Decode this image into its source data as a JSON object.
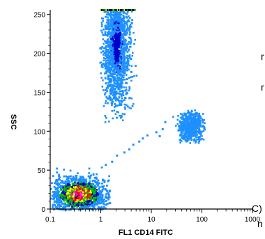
{
  "chart_data": {
    "type": "scatter",
    "title": "",
    "xlabel": "FL1 CD14 FITC",
    "ylabel": "SSC",
    "x_scale": "log",
    "xlim": [
      0.1,
      1000
    ],
    "ylim": [
      0,
      256
    ],
    "x_ticks": [
      "0.1",
      "1",
      "10",
      "100",
      "1000"
    ],
    "y_ticks": [
      "0",
      "50",
      "100",
      "150",
      "200",
      "250"
    ],
    "grid": false,
    "legend": "none",
    "density_colors": [
      "#1e90ff",
      "#0000cd",
      "#00c000",
      "#ffff00",
      "#ff0000",
      "#ff00ff",
      "#000000"
    ],
    "populations": [
      {
        "x_center": 2.0,
        "x_range": [
          0.9,
          5.0
        ],
        "y_center": 210,
        "y_range": [
          112,
          256
        ]
      },
      {
        "x_center": 60,
        "x_range": [
          20,
          110
        ],
        "y_center": 107,
        "y_range": [
          85,
          128
        ]
      },
      {
        "x_center": 0.35,
        "x_range": [
          0.1,
          1.5
        ],
        "y_center": 20,
        "y_range": [
          0,
          55
        ]
      }
    ]
  },
  "edge_text": {
    "top_right": "r",
    "middle_right": "r",
    "bottom_paren": "C)",
    "bottom_n": "n"
  }
}
